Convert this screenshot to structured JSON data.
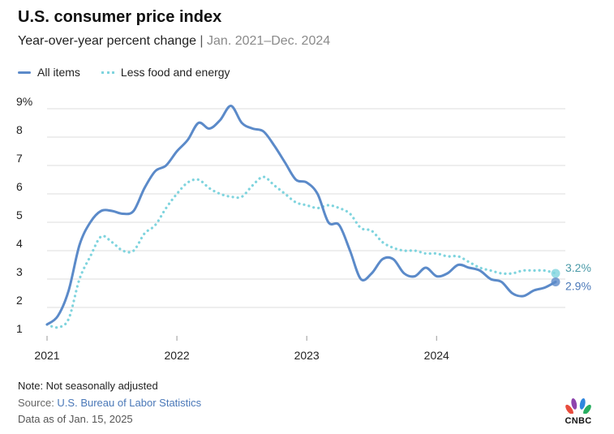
{
  "header": {
    "title": "U.S. consumer price index",
    "subtitle_main": "Year-over-year percent change",
    "subtitle_sep": " | ",
    "subtitle_range": "Jan. 2021–Dec. 2024"
  },
  "legend": {
    "all_items": "All items",
    "core": "Less food and energy"
  },
  "colors": {
    "all_items": "#5b8ac9",
    "core": "#7fd4de",
    "grid": "#dcdcdc",
    "axis_text": "#222222"
  },
  "footer": {
    "note": "Note: Not seasonally adjusted",
    "source_prefix": "Source: ",
    "source_link": "U.S. Bureau of Labor Statistics",
    "data_as_of": "Data as of Jan. 15, 2025"
  },
  "logo": {
    "name": "peacock-logo-icon",
    "wordmark": "CNBC"
  },
  "chart_data": {
    "type": "line",
    "title": "U.S. consumer price index",
    "subtitle": "Year-over-year percent change | Jan. 2021–Dec. 2024",
    "ylim": [
      1,
      9
    ],
    "yticks": [
      1,
      2,
      3,
      4,
      5,
      6,
      7,
      8,
      9
    ],
    "ytick_labels": [
      "1",
      "2",
      "3",
      "4",
      "5",
      "6",
      "7",
      "8",
      "9%"
    ],
    "x_start": "2021-01",
    "x_end": "2024-12",
    "xtick_labels": [
      "2021",
      "2022",
      "2023",
      "2024"
    ],
    "xtick_positions": [
      "2021-01",
      "2022-01",
      "2023-01",
      "2024-01"
    ],
    "grid": true,
    "legend_position": "top-left",
    "x": [
      "2021-01",
      "2021-02",
      "2021-03",
      "2021-04",
      "2021-05",
      "2021-06",
      "2021-07",
      "2021-08",
      "2021-09",
      "2021-10",
      "2021-11",
      "2021-12",
      "2022-01",
      "2022-02",
      "2022-03",
      "2022-04",
      "2022-05",
      "2022-06",
      "2022-07",
      "2022-08",
      "2022-09",
      "2022-10",
      "2022-11",
      "2022-12",
      "2023-01",
      "2023-02",
      "2023-03",
      "2023-04",
      "2023-05",
      "2023-06",
      "2023-07",
      "2023-08",
      "2023-09",
      "2023-10",
      "2023-11",
      "2023-12",
      "2024-01",
      "2024-02",
      "2024-03",
      "2024-04",
      "2024-05",
      "2024-06",
      "2024-07",
      "2024-08",
      "2024-09",
      "2024-10",
      "2024-11",
      "2024-12"
    ],
    "series": [
      {
        "name": "All items",
        "style": "solid",
        "values": [
          1.4,
          1.7,
          2.6,
          4.2,
          5.0,
          5.4,
          5.4,
          5.3,
          5.4,
          6.2,
          6.8,
          7.0,
          7.5,
          7.9,
          8.5,
          8.3,
          8.6,
          9.1,
          8.5,
          8.3,
          8.2,
          7.7,
          7.1,
          6.5,
          6.4,
          6.0,
          5.0,
          4.9,
          4.0,
          3.0,
          3.2,
          3.7,
          3.7,
          3.2,
          3.1,
          3.4,
          3.1,
          3.2,
          3.5,
          3.4,
          3.3,
          3.0,
          2.9,
          2.5,
          2.4,
          2.6,
          2.7,
          2.9
        ],
        "end_label": "2.9%"
      },
      {
        "name": "Less food and energy",
        "style": "dotted",
        "values": [
          1.4,
          1.3,
          1.6,
          3.0,
          3.8,
          4.5,
          4.3,
          4.0,
          4.0,
          4.6,
          4.9,
          5.5,
          6.0,
          6.4,
          6.5,
          6.2,
          6.0,
          5.9,
          5.9,
          6.3,
          6.6,
          6.3,
          6.0,
          5.7,
          5.6,
          5.5,
          5.6,
          5.5,
          5.3,
          4.8,
          4.7,
          4.3,
          4.1,
          4.0,
          4.0,
          3.9,
          3.9,
          3.8,
          3.8,
          3.6,
          3.4,
          3.3,
          3.2,
          3.2,
          3.3,
          3.3,
          3.3,
          3.2
        ],
        "end_label": "3.2%"
      }
    ]
  }
}
